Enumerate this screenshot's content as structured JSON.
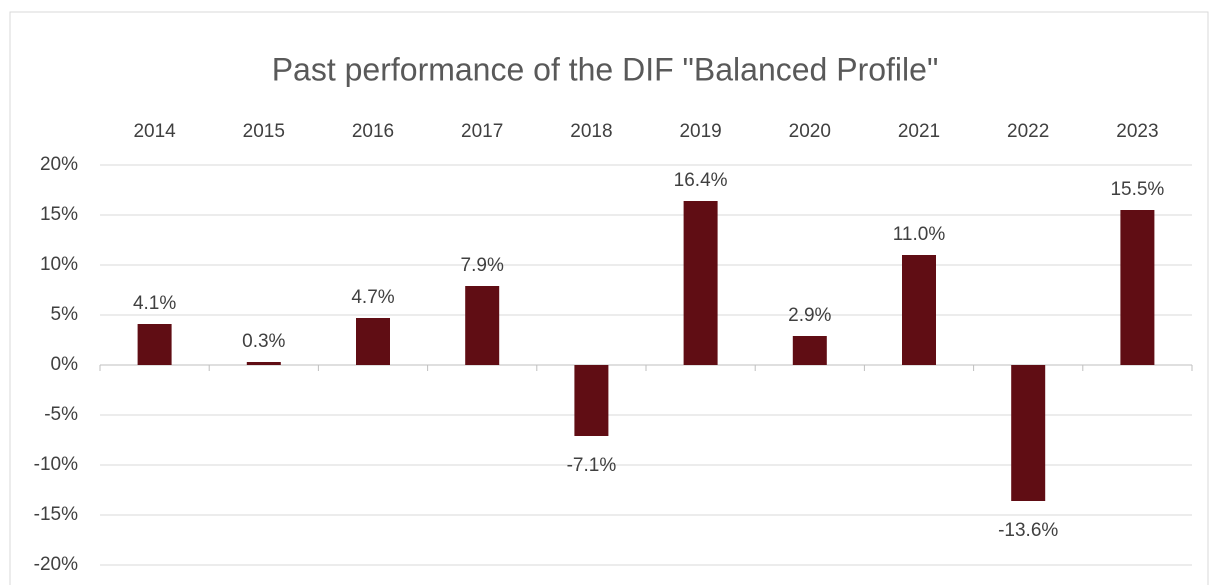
{
  "chart_data": {
    "type": "bar",
    "title": "Past performance of  the DIF \"Balanced Profile\"",
    "categories": [
      "2014",
      "2015",
      "2016",
      "2017",
      "2018",
      "2019",
      "2020",
      "2021",
      "2022",
      "2023"
    ],
    "values": [
      4.1,
      0.3,
      4.7,
      7.9,
      -7.1,
      16.4,
      2.9,
      11.0,
      -13.6,
      15.5
    ],
    "value_labels": [
      "4.1%",
      "0.3%",
      "4.7%",
      "7.9%",
      "-7.1%",
      "16.4%",
      "2.9%",
      "11.0%",
      "-13.6%",
      "15.5%"
    ],
    "color": "#600d14",
    "ylim": [
      -20,
      20
    ],
    "yticks": [
      {
        "value": -20,
        "label": "-20%"
      },
      {
        "value": -15,
        "label": "-15%"
      },
      {
        "value": -10,
        "label": "-10%"
      },
      {
        "value": -5,
        "label": "-5%"
      },
      {
        "value": 0,
        "label": "0%"
      },
      {
        "value": 5,
        "label": "5%"
      },
      {
        "value": 10,
        "label": "10%"
      },
      {
        "value": 15,
        "label": "15%"
      },
      {
        "value": 20,
        "label": "20%"
      }
    ],
    "grid": true
  }
}
